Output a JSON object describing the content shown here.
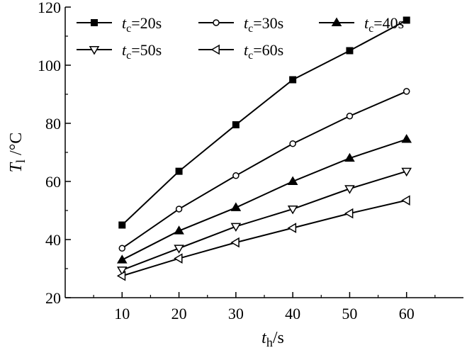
{
  "chart_data": {
    "type": "line",
    "x": [
      10,
      20,
      30,
      40,
      50,
      60
    ],
    "xticks": [
      "10",
      "20",
      "30",
      "40",
      "50",
      "60"
    ],
    "yticks": [
      "20",
      "40",
      "60",
      "80",
      "100",
      "120"
    ],
    "xlim": [
      0,
      70
    ],
    "ylim": [
      20,
      120
    ],
    "xlabel": {
      "main": "t",
      "sub": "h",
      "unit": "/s"
    },
    "ylabel": {
      "main": "T",
      "sub": "l",
      "unit": "/°C"
    },
    "grid": false,
    "legend_position": "top-left",
    "series": [
      {
        "name": "tc=20s",
        "name_main": "t",
        "name_sub": "c",
        "name_rest": "=20s",
        "marker": "square-filled",
        "values": [
          45,
          63.5,
          79.5,
          95,
          105,
          115.5
        ]
      },
      {
        "name": "tc=30s",
        "name_main": "t",
        "name_sub": "c",
        "name_rest": "=30s",
        "marker": "circle-open",
        "values": [
          37,
          50.5,
          62,
          73,
          82.5,
          91
        ]
      },
      {
        "name": "tc=40s",
        "name_main": "t",
        "name_sub": "c",
        "name_rest": "=40s",
        "marker": "triangle-up-filled",
        "values": [
          33,
          43,
          51,
          60,
          68,
          74.5
        ]
      },
      {
        "name": "tc=50s",
        "name_main": "t",
        "name_sub": "c",
        "name_rest": "=50s",
        "marker": "triangle-down-open",
        "values": [
          29.5,
          37,
          44.5,
          50.5,
          57.5,
          63.5
        ]
      },
      {
        "name": "tc=60s",
        "name_main": "t",
        "name_sub": "c",
        "name_rest": "=60s",
        "marker": "triangle-left-open",
        "values": [
          27.5,
          33.5,
          39,
          44,
          49,
          53.5
        ]
      }
    ]
  }
}
